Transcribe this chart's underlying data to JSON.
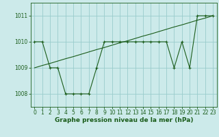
{
  "x": [
    0,
    1,
    2,
    3,
    4,
    5,
    6,
    7,
    8,
    9,
    10,
    11,
    12,
    13,
    14,
    15,
    16,
    17,
    18,
    19,
    20,
    21,
    22,
    23
  ],
  "y_jagged": [
    1010.0,
    1010.0,
    1009.0,
    1009.0,
    1008.0,
    1008.0,
    1008.0,
    1008.0,
    1009.0,
    1010.0,
    1010.0,
    1010.0,
    1010.0,
    1010.0,
    1010.0,
    1010.0,
    1010.0,
    1010.0,
    1009.0,
    1010.0,
    1009.0,
    1011.0,
    1011.0,
    1011.0
  ],
  "y_trend": [
    1009.0,
    1009.09,
    1009.17,
    1009.26,
    1009.35,
    1009.43,
    1009.52,
    1009.61,
    1009.7,
    1009.78,
    1009.87,
    1009.96,
    1010.04,
    1010.13,
    1010.22,
    1010.3,
    1010.39,
    1010.48,
    1010.57,
    1010.65,
    1010.74,
    1010.83,
    1010.91,
    1011.0
  ],
  "line_color": "#1a5c1a",
  "bg_color": "#cceaea",
  "grid_color": "#99cccc",
  "xlabel": "Graphe pression niveau de la mer (hPa)",
  "xlim": [
    -0.5,
    23.5
  ],
  "ylim": [
    1007.5,
    1011.5
  ],
  "yticks": [
    1008,
    1009,
    1010,
    1011
  ],
  "xticks": [
    0,
    1,
    2,
    3,
    4,
    5,
    6,
    7,
    8,
    9,
    10,
    11,
    12,
    13,
    14,
    15,
    16,
    17,
    18,
    19,
    20,
    21,
    22,
    23
  ],
  "marker": "+",
  "markersize": 3,
  "linewidth": 0.8,
  "xlabel_fontsize": 6.5,
  "tick_fontsize": 5.5
}
